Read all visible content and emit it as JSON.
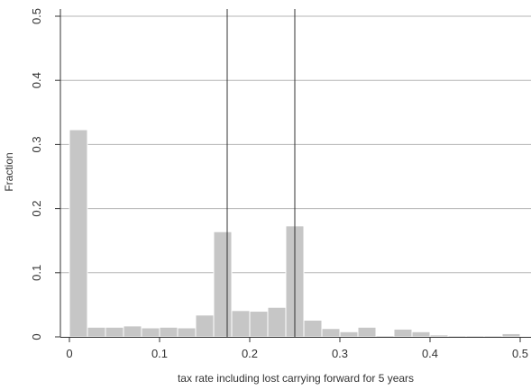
{
  "chart_data": {
    "type": "bar",
    "subtype": "histogram",
    "xlabel": "tax rate including lost carrying forward for 5 years",
    "ylabel": "Fraction",
    "xlim": [
      -0.01,
      0.51
    ],
    "ylim": [
      0,
      0.5
    ],
    "x_ticks": [
      0,
      0.1,
      0.2,
      0.3,
      0.4,
      0.5
    ],
    "x_tick_labels": [
      "0",
      "0.1",
      "0.2",
      "0.3",
      "0.4",
      "0.5"
    ],
    "y_ticks": [
      0,
      0.1,
      0.2,
      0.3,
      0.4,
      0.5
    ],
    "y_tick_labels": [
      "0",
      "0.1",
      "0.2",
      "0.3",
      "0.4",
      "0.5"
    ],
    "grid": "horizontal",
    "bin_width": 0.02,
    "bin_starts": [
      0,
      0.02,
      0.04,
      0.06,
      0.08,
      0.1,
      0.12,
      0.14,
      0.16,
      0.18,
      0.2,
      0.22,
      0.24,
      0.26,
      0.28,
      0.3,
      0.32,
      0.34,
      0.36,
      0.38,
      0.4,
      0.42,
      0.44,
      0.46,
      0.48
    ],
    "values": [
      0.323,
      0.015,
      0.015,
      0.017,
      0.014,
      0.015,
      0.014,
      0.034,
      0.164,
      0.041,
      0.04,
      0.046,
      0.173,
      0.026,
      0.013,
      0.008,
      0.015,
      0.002,
      0.012,
      0.008,
      0.003,
      0.002,
      0.002,
      0.002,
      0.005
    ],
    "reference_lines_x": [
      0.175,
      0.25
    ],
    "colors": {
      "bar_fill": "#c6c6c6",
      "bar_edge": "#ffffff",
      "grid": "#b5b5b5",
      "axis": "#333333",
      "ref_line": "#333333"
    }
  }
}
